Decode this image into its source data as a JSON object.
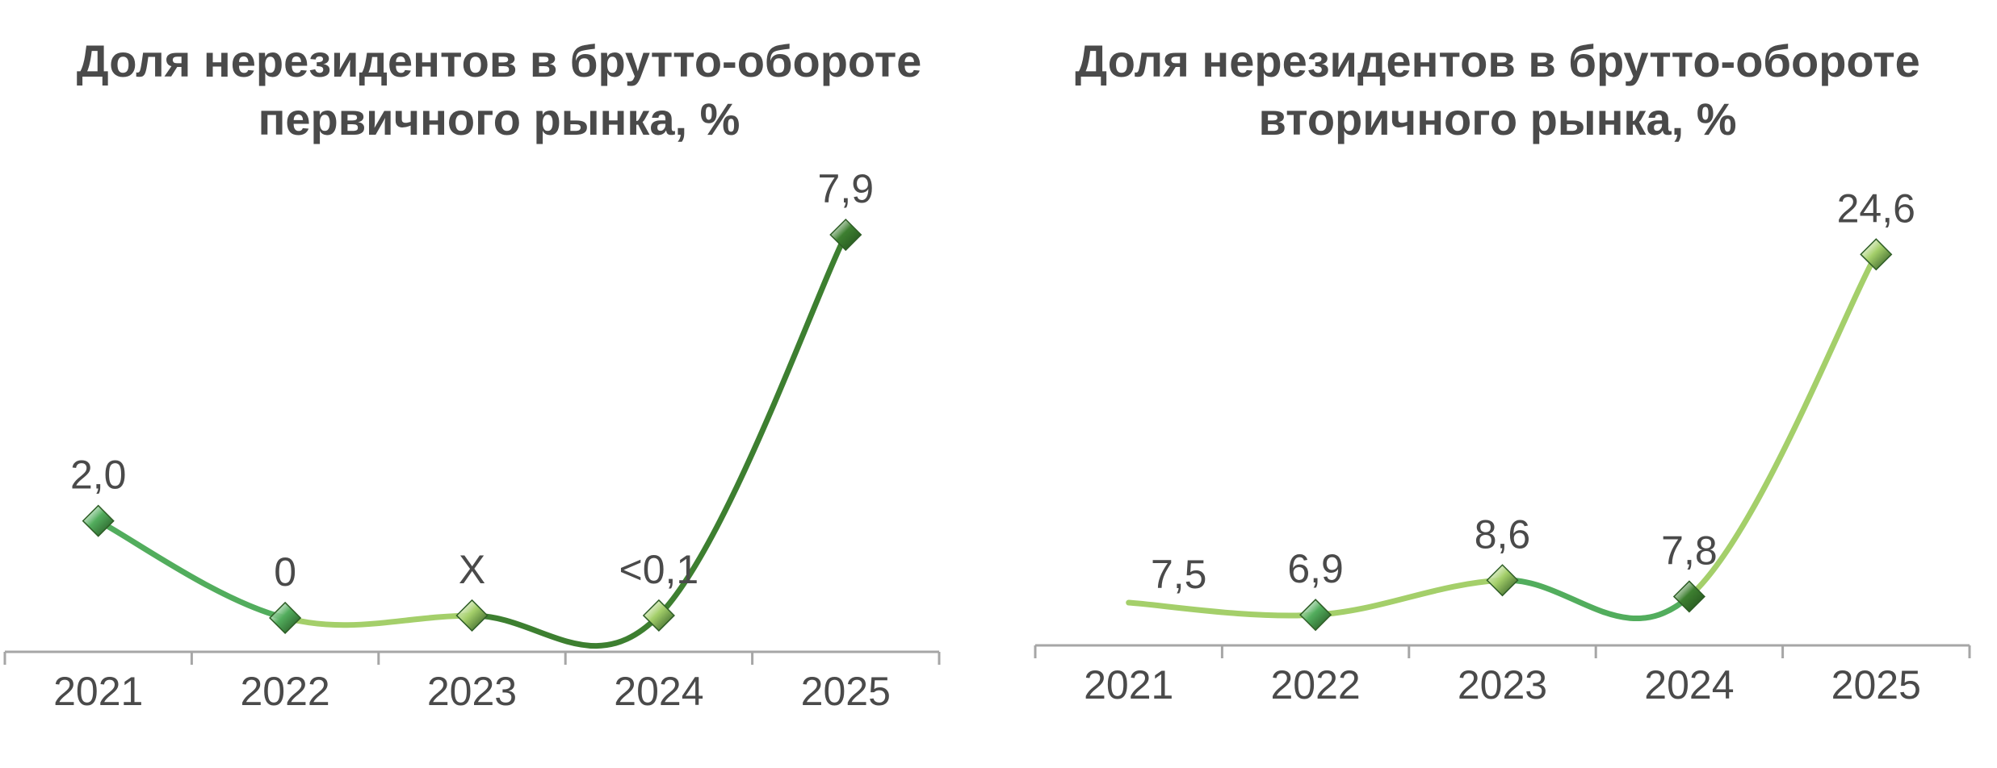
{
  "chart_data": [
    {
      "type": "line",
      "title": [
        "Доля нерезидентов в брутто-обороте",
        "первичного рынка, %"
      ],
      "categories": [
        "2021",
        "2022",
        "2023",
        "2024",
        "2025"
      ],
      "values": [
        2.0,
        0,
        0.05,
        0.05,
        7.9
      ],
      "labels": [
        "2,0",
        "0",
        "X",
        "<0,1",
        "7,9"
      ],
      "ylim": [
        -0.4,
        8
      ],
      "colors": {
        "light": "#a4cf6a",
        "mid": "#52ad5d",
        "dark": "#3d7f30"
      },
      "xlabel": "",
      "ylabel": ""
    },
    {
      "type": "line",
      "title": [
        "Доля нерезидентов в брутто-обороте",
        "вторичного рынка, %"
      ],
      "categories": [
        "2021",
        "2022",
        "2023",
        "2024",
        "2025"
      ],
      "values": [
        7.5,
        6.9,
        8.6,
        7.8,
        24.6
      ],
      "labels": [
        "7,5",
        "6,9",
        "8,6",
        "7,8",
        "24,6"
      ],
      "ylim": [
        3.5,
        26
      ],
      "colors": {
        "light": "#a4cf6a",
        "mid": "#52ad5d",
        "dark": "#3d7f30"
      },
      "xlabel": "",
      "ylabel": ""
    }
  ]
}
